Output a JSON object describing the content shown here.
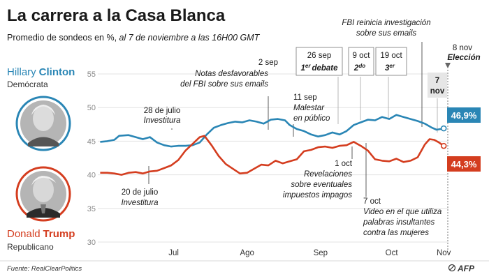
{
  "header": {
    "title": "La carrera a la Casa Blanca",
    "subtitle_regular": "Promedio de sondeos en %, ",
    "subtitle_italic": "al 7 de noviembre a las 16H00 GMT"
  },
  "candidates": {
    "clinton": {
      "first": "Hillary",
      "last": "Clinton",
      "party": "Demócrata",
      "color": "#2a86b5"
    },
    "trump": {
      "first": "Donald",
      "last": "Trump",
      "party": "Republicano",
      "color": "#d43d1f"
    }
  },
  "source": "Fuente: RealClearPolitics",
  "logo": "AFP",
  "annotations": {
    "conv_dem_date": "28 de julio",
    "conv_dem_text": "Investitura",
    "conv_rep_date": "20 de julio",
    "conv_rep_text": "Investitura",
    "fbi_notes_date": "2 sep",
    "fbi_notes_l1": "Notas desfavorables",
    "fbi_notes_l2": "del FBI sobre sus emails",
    "sick_date": "11 sep",
    "sick_l1": "Malestar",
    "sick_l2": "en público",
    "fbi_reopen_l1": "FBI reinicia investigación",
    "fbi_reopen_l2": "sobre sus emails",
    "tax_date": "1 oct",
    "tax_l1": "Revelaciones",
    "tax_l2": "sobre eventuales",
    "tax_l3": "impuestos impagos",
    "video_date": "7 oct",
    "video_l1": "Video en el que utiliza",
    "video_l2": "palabras insultantes",
    "video_l3": "contra las mujeres",
    "election_date": "8 nov",
    "election_text": "Elección",
    "today_l1": "7",
    "today_l2": "nov",
    "debate1_date": "26 sep",
    "debate1_num": "1",
    "debate1_sup": "er",
    "debate1_word": "debate",
    "debate2_date": "9 oct",
    "debate2_num": "2",
    "debate2_sup": "do",
    "debate3_date": "19 oct",
    "debate3_num": "3",
    "debate3_sup": "er"
  },
  "chart_data": {
    "type": "line",
    "title": "La carrera a la Casa Blanca",
    "subtitle": "Promedio de sondeos en %, al 7 de noviembre a las 16H00 GMT",
    "ylim": [
      30,
      55
    ],
    "yticks": [
      30,
      35,
      40,
      45,
      50,
      55
    ],
    "xlim": [
      "2016-06-14",
      "2016-11-09"
    ],
    "month_ticks": [
      {
        "label": "Jul",
        "date": "2016-07-16"
      },
      {
        "label": "Ago",
        "date": "2016-08-16"
      },
      {
        "label": "Sep",
        "date": "2016-09-16"
      },
      {
        "label": "Oct",
        "date": "2016-10-16"
      },
      {
        "label": "Nov",
        "date": "2016-11-07"
      }
    ],
    "grid": true,
    "series": [
      {
        "name": "Clinton",
        "color": "#2a86b5",
        "end_label": "46,9%",
        "points": [
          [
            "2016-06-15",
            44.9
          ],
          [
            "2016-06-18",
            45.0
          ],
          [
            "2016-06-21",
            45.2
          ],
          [
            "2016-06-23",
            45.8
          ],
          [
            "2016-06-27",
            45.9
          ],
          [
            "2016-06-30",
            45.6
          ],
          [
            "2016-07-03",
            45.3
          ],
          [
            "2016-07-06",
            45.6
          ],
          [
            "2016-07-09",
            44.8
          ],
          [
            "2016-07-12",
            44.4
          ],
          [
            "2016-07-15",
            44.2
          ],
          [
            "2016-07-18",
            44.3
          ],
          [
            "2016-07-21",
            44.3
          ],
          [
            "2016-07-24",
            44.4
          ],
          [
            "2016-07-27",
            44.8
          ],
          [
            "2016-07-30",
            46.0
          ],
          [
            "2016-08-02",
            47.0
          ],
          [
            "2016-08-05",
            47.4
          ],
          [
            "2016-08-08",
            47.7
          ],
          [
            "2016-08-11",
            47.9
          ],
          [
            "2016-08-14",
            47.8
          ],
          [
            "2016-08-17",
            48.1
          ],
          [
            "2016-08-20",
            47.9
          ],
          [
            "2016-08-23",
            47.6
          ],
          [
            "2016-08-26",
            48.2
          ],
          [
            "2016-08-29",
            48.3
          ],
          [
            "2016-09-01",
            48.1
          ],
          [
            "2016-09-03",
            47.4
          ],
          [
            "2016-09-06",
            46.8
          ],
          [
            "2016-09-09",
            46.5
          ],
          [
            "2016-09-12",
            46.0
          ],
          [
            "2016-09-15",
            45.7
          ],
          [
            "2016-09-18",
            45.9
          ],
          [
            "2016-09-21",
            46.3
          ],
          [
            "2016-09-24",
            46.0
          ],
          [
            "2016-09-27",
            46.5
          ],
          [
            "2016-09-30",
            47.4
          ],
          [
            "2016-10-03",
            47.8
          ],
          [
            "2016-10-06",
            48.2
          ],
          [
            "2016-10-09",
            48.1
          ],
          [
            "2016-10-12",
            48.6
          ],
          [
            "2016-10-15",
            48.3
          ],
          [
            "2016-10-18",
            48.9
          ],
          [
            "2016-10-21",
            48.6
          ],
          [
            "2016-10-24",
            48.3
          ],
          [
            "2016-10-27",
            48.0
          ],
          [
            "2016-10-30",
            47.6
          ],
          [
            "2016-11-02",
            47.0
          ],
          [
            "2016-11-04",
            46.7
          ],
          [
            "2016-11-07",
            46.9
          ]
        ]
      },
      {
        "name": "Trump",
        "color": "#d43d1f",
        "end_label": "44,3%",
        "points": [
          [
            "2016-06-15",
            40.3
          ],
          [
            "2016-06-18",
            40.3
          ],
          [
            "2016-06-21",
            40.2
          ],
          [
            "2016-06-24",
            40.0
          ],
          [
            "2016-06-27",
            40.3
          ],
          [
            "2016-06-30",
            40.4
          ],
          [
            "2016-07-03",
            40.2
          ],
          [
            "2016-07-06",
            40.5
          ],
          [
            "2016-07-09",
            40.6
          ],
          [
            "2016-07-12",
            41.0
          ],
          [
            "2016-07-15",
            41.4
          ],
          [
            "2016-07-18",
            42.2
          ],
          [
            "2016-07-21",
            43.6
          ],
          [
            "2016-07-24",
            44.6
          ],
          [
            "2016-07-27",
            45.6
          ],
          [
            "2016-07-29",
            45.8
          ],
          [
            "2016-08-01",
            44.4
          ],
          [
            "2016-08-04",
            42.8
          ],
          [
            "2016-08-07",
            41.6
          ],
          [
            "2016-08-10",
            40.9
          ],
          [
            "2016-08-13",
            40.2
          ],
          [
            "2016-08-16",
            40.3
          ],
          [
            "2016-08-19",
            40.9
          ],
          [
            "2016-08-22",
            41.5
          ],
          [
            "2016-08-25",
            41.4
          ],
          [
            "2016-08-28",
            42.1
          ],
          [
            "2016-08-31",
            41.7
          ],
          [
            "2016-09-03",
            42.0
          ],
          [
            "2016-09-06",
            42.3
          ],
          [
            "2016-09-09",
            43.5
          ],
          [
            "2016-09-12",
            43.7
          ],
          [
            "2016-09-15",
            44.1
          ],
          [
            "2016-09-18",
            44.2
          ],
          [
            "2016-09-21",
            44.0
          ],
          [
            "2016-09-24",
            44.3
          ],
          [
            "2016-09-27",
            44.4
          ],
          [
            "2016-09-30",
            44.9
          ],
          [
            "2016-10-03",
            44.3
          ],
          [
            "2016-10-06",
            43.6
          ],
          [
            "2016-10-09",
            42.3
          ],
          [
            "2016-10-12",
            42.1
          ],
          [
            "2016-10-15",
            42.0
          ],
          [
            "2016-10-18",
            42.4
          ],
          [
            "2016-10-21",
            41.9
          ],
          [
            "2016-10-24",
            42.1
          ],
          [
            "2016-10-27",
            42.6
          ],
          [
            "2016-10-30",
            44.5
          ],
          [
            "2016-11-01",
            45.3
          ],
          [
            "2016-11-03",
            45.2
          ],
          [
            "2016-11-05",
            44.8
          ],
          [
            "2016-11-07",
            44.3
          ]
        ]
      }
    ]
  }
}
